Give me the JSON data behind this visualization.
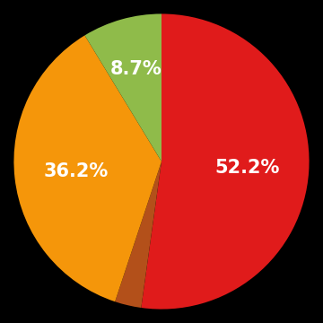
{
  "slices": [
    52.2,
    2.9,
    36.2,
    8.7
  ],
  "colors": [
    "#e01b1b",
    "#b3501a",
    "#f5960a",
    "#8fbb4a"
  ],
  "labels": [
    "52.2%",
    "",
    "36.2%",
    "8.7%"
  ],
  "background_color": "#000000",
  "startangle": 90,
  "label_fontsize": 15,
  "label_color": "#ffffff",
  "label_radii": [
    0.58,
    0.0,
    0.58,
    0.65
  ]
}
